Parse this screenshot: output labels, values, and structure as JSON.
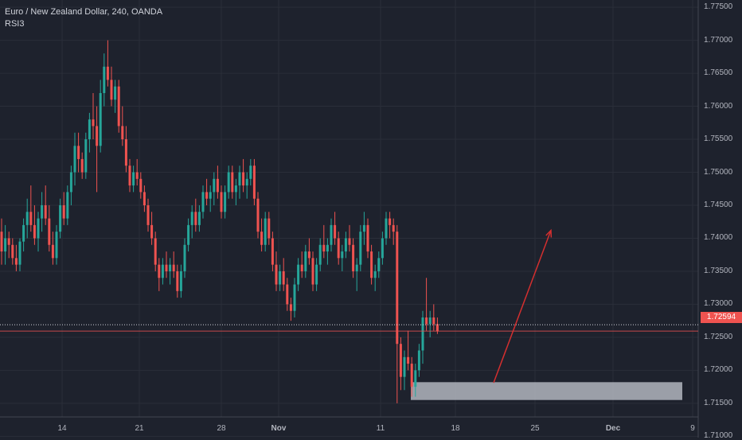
{
  "header": {
    "title": "Euro / New Zealand Dollar, 240, OANDA",
    "indicator": "RSI3"
  },
  "colors": {
    "background": "#1e222d",
    "up": "#26a69a",
    "down": "#ef5350",
    "zone": "#b2b5be",
    "arrow": "#d32f2f",
    "text": "#b2b5be"
  },
  "price_axis": {
    "labels": [
      "1.77500",
      "1.77000",
      "1.76500",
      "1.76000",
      "1.75500",
      "1.75000",
      "1.74500",
      "1.74000",
      "1.73500",
      "1.73000",
      "1.72500",
      "1.72000",
      "1.71500",
      "1.71000"
    ],
    "last_price": "1.72594"
  },
  "chart_data": {
    "type": "candlestick",
    "title": "Euro / New Zealand Dollar, 240, OANDA",
    "x_tick_labels": [
      "14",
      "21",
      "28",
      "Nov",
      "11",
      "18",
      "25",
      "Dec",
      "9"
    ],
    "ylim": [
      1.7098,
      1.7761
    ],
    "last_price": 1.72594,
    "horizontal_line_dotted": 1.7269,
    "horizontal_line_price": 1.72594,
    "demand_zone": {
      "low": 1.7155,
      "high": 1.7182
    },
    "arrow": {
      "from_price": 1.7181,
      "to_price": 1.7412
    },
    "ohlc": [
      [
        1.741,
        1.743,
        1.736,
        1.738
      ],
      [
        1.738,
        1.742,
        1.736,
        1.74
      ],
      [
        1.74,
        1.741,
        1.737,
        1.739
      ],
      [
        1.739,
        1.74,
        1.736,
        1.737
      ],
      [
        1.737,
        1.739,
        1.735,
        1.736
      ],
      [
        1.736,
        1.74,
        1.735,
        1.7395
      ],
      [
        1.7395,
        1.743,
        1.738,
        1.742
      ],
      [
        1.742,
        1.746,
        1.74,
        1.744
      ],
      [
        1.744,
        1.748,
        1.741,
        1.742
      ],
      [
        1.742,
        1.745,
        1.739,
        1.74
      ],
      [
        1.74,
        1.744,
        1.738,
        1.743
      ],
      [
        1.743,
        1.747,
        1.741,
        1.745
      ],
      [
        1.745,
        1.748,
        1.742,
        1.743
      ],
      [
        1.743,
        1.745,
        1.738,
        1.739
      ],
      [
        1.739,
        1.741,
        1.736,
        1.737
      ],
      [
        1.737,
        1.742,
        1.736,
        1.741
      ],
      [
        1.741,
        1.746,
        1.74,
        1.745
      ],
      [
        1.745,
        1.747,
        1.742,
        1.743
      ],
      [
        1.743,
        1.748,
        1.742,
        1.747
      ],
      [
        1.747,
        1.751,
        1.745,
        1.75
      ],
      [
        1.75,
        1.756,
        1.748,
        1.754
      ],
      [
        1.754,
        1.756,
        1.75,
        1.752
      ],
      [
        1.752,
        1.753,
        1.749,
        1.75
      ],
      [
        1.75,
        1.756,
        1.749,
        1.755
      ],
      [
        1.755,
        1.759,
        1.753,
        1.758
      ],
      [
        1.758,
        1.762,
        1.755,
        1.757
      ],
      [
        1.757,
        1.76,
        1.747,
        1.754
      ],
      [
        1.754,
        1.764,
        1.753,
        1.762
      ],
      [
        1.762,
        1.768,
        1.76,
        1.766
      ],
      [
        1.766,
        1.77,
        1.763,
        1.764
      ],
      [
        1.764,
        1.766,
        1.76,
        1.761
      ],
      [
        1.761,
        1.764,
        1.759,
        1.763
      ],
      [
        1.763,
        1.764,
        1.756,
        1.757
      ],
      [
        1.757,
        1.76,
        1.754,
        1.755
      ],
      [
        1.755,
        1.757,
        1.75,
        1.751
      ],
      [
        1.751,
        1.752,
        1.747,
        1.748
      ],
      [
        1.748,
        1.751,
        1.747,
        1.75
      ],
      [
        1.75,
        1.752,
        1.748,
        1.749
      ],
      [
        1.749,
        1.75,
        1.746,
        1.747
      ],
      [
        1.747,
        1.748,
        1.744,
        1.745
      ],
      [
        1.745,
        1.746,
        1.741,
        1.742
      ],
      [
        1.742,
        1.744,
        1.739,
        1.74
      ],
      [
        1.74,
        1.741,
        1.735,
        1.736
      ],
      [
        1.736,
        1.737,
        1.732,
        1.734
      ],
      [
        1.734,
        1.737,
        1.733,
        1.736
      ],
      [
        1.736,
        1.738,
        1.734,
        1.735
      ],
      [
        1.735,
        1.737,
        1.733,
        1.736
      ],
      [
        1.736,
        1.738,
        1.734,
        1.735
      ],
      [
        1.735,
        1.736,
        1.731,
        1.732
      ],
      [
        1.732,
        1.736,
        1.731,
        1.735
      ],
      [
        1.735,
        1.74,
        1.734,
        1.739
      ],
      [
        1.739,
        1.743,
        1.738,
        1.742
      ],
      [
        1.742,
        1.745,
        1.74,
        1.744
      ],
      [
        1.744,
        1.746,
        1.741,
        1.742
      ],
      [
        1.742,
        1.745,
        1.741,
        1.744
      ],
      [
        1.744,
        1.748,
        1.743,
        1.747
      ],
      [
        1.747,
        1.749,
        1.745,
        1.746
      ],
      [
        1.746,
        1.748,
        1.744,
        1.747
      ],
      [
        1.747,
        1.75,
        1.745,
        1.749
      ],
      [
        1.749,
        1.751,
        1.746,
        1.747
      ],
      [
        1.747,
        1.748,
        1.743,
        1.744
      ],
      [
        1.744,
        1.748,
        1.743,
        1.747
      ],
      [
        1.747,
        1.751,
        1.746,
        1.75
      ],
      [
        1.75,
        1.751,
        1.746,
        1.747
      ],
      [
        1.747,
        1.749,
        1.745,
        1.748
      ],
      [
        1.748,
        1.751,
        1.746,
        1.75
      ],
      [
        1.75,
        1.752,
        1.747,
        1.748
      ],
      [
        1.748,
        1.75,
        1.746,
        1.749
      ],
      [
        1.749,
        1.752,
        1.748,
        1.751
      ],
      [
        1.751,
        1.752,
        1.745,
        1.746
      ],
      [
        1.746,
        1.747,
        1.74,
        1.741
      ],
      [
        1.741,
        1.743,
        1.738,
        1.739
      ],
      [
        1.739,
        1.744,
        1.738,
        1.743
      ],
      [
        1.743,
        1.744,
        1.739,
        1.74
      ],
      [
        1.74,
        1.741,
        1.735,
        1.736
      ],
      [
        1.736,
        1.738,
        1.732,
        1.733
      ],
      [
        1.733,
        1.736,
        1.732,
        1.735
      ],
      [
        1.735,
        1.737,
        1.732,
        1.733
      ],
      [
        1.733,
        1.734,
        1.729,
        1.73
      ],
      [
        1.73,
        1.731,
        1.7275,
        1.729
      ],
      [
        1.729,
        1.734,
        1.728,
        1.733
      ],
      [
        1.733,
        1.737,
        1.732,
        1.736
      ],
      [
        1.736,
        1.738,
        1.734,
        1.735
      ],
      [
        1.735,
        1.739,
        1.734,
        1.738
      ],
      [
        1.738,
        1.74,
        1.736,
        1.737
      ],
      [
        1.737,
        1.738,
        1.732,
        1.733
      ],
      [
        1.733,
        1.737,
        1.732,
        1.736
      ],
      [
        1.736,
        1.74,
        1.735,
        1.739
      ],
      [
        1.739,
        1.742,
        1.737,
        1.738
      ],
      [
        1.738,
        1.74,
        1.736,
        1.739
      ],
      [
        1.739,
        1.743,
        1.738,
        1.742
      ],
      [
        1.742,
        1.744,
        1.739,
        1.74
      ],
      [
        1.74,
        1.741,
        1.736,
        1.737
      ],
      [
        1.737,
        1.739,
        1.735,
        1.738
      ],
      [
        1.738,
        1.741,
        1.737,
        1.74
      ],
      [
        1.74,
        1.742,
        1.738,
        1.739
      ],
      [
        1.739,
        1.74,
        1.734,
        1.735
      ],
      [
        1.735,
        1.737,
        1.732,
        1.736
      ],
      [
        1.736,
        1.742,
        1.735,
        1.741
      ],
      [
        1.741,
        1.744,
        1.739,
        1.742
      ],
      [
        1.742,
        1.743,
        1.737,
        1.738
      ],
      [
        1.738,
        1.739,
        1.733,
        1.734
      ],
      [
        1.734,
        1.736,
        1.732,
        1.735
      ],
      [
        1.735,
        1.738,
        1.734,
        1.737
      ],
      [
        1.737,
        1.741,
        1.736,
        1.74
      ],
      [
        1.74,
        1.744,
        1.739,
        1.743
      ],
      [
        1.743,
        1.744,
        1.74,
        1.742
      ],
      [
        1.742,
        1.743,
        1.739,
        1.741
      ],
      [
        1.741,
        1.742,
        1.715,
        1.724
      ],
      [
        1.724,
        1.725,
        1.717,
        1.719
      ],
      [
        1.719,
        1.723,
        1.717,
        1.722
      ],
      [
        1.722,
        1.726,
        1.72,
        1.721
      ],
      [
        1.721,
        1.722,
        1.716,
        1.7175
      ],
      [
        1.7175,
        1.721,
        1.716,
        1.72
      ],
      [
        1.72,
        1.724,
        1.719,
        1.723
      ],
      [
        1.723,
        1.729,
        1.721,
        1.728
      ],
      [
        1.728,
        1.734,
        1.726,
        1.727
      ],
      [
        1.727,
        1.729,
        1.725,
        1.728
      ],
      [
        1.728,
        1.73,
        1.726,
        1.727
      ],
      [
        1.727,
        1.728,
        1.7255,
        1.7259
      ]
    ]
  }
}
